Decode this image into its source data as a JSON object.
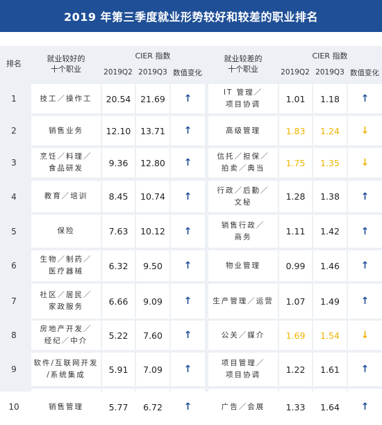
{
  "title": "2019 年第三季度就业形势较好和较差的职业排名",
  "header": {
    "rank": "排名",
    "good_group": "就业较好的\n十个职业",
    "bad_group": "就业较差的\n十个职业",
    "cier": "CIER 指数",
    "q2": "2019Q2",
    "q3": "2019Q3",
    "change": "数值变化"
  },
  "colors": {
    "title_bg": "#1f4f96",
    "up_arrow": "#1f4f96",
    "down_arrow": "#f0b400",
    "highlight_value": "#f0b400",
    "table_bg": "#edf1f6"
  },
  "rows": [
    {
      "rank": "1",
      "good_job": "技工／操作工",
      "good_q2": "20.54",
      "good_q3": "21.69",
      "good_change": "up",
      "bad_job": "IT 管理／\n项目协调",
      "bad_q2": "1.01",
      "bad_q3": "1.18",
      "bad_change": "up",
      "bad_highlight": false
    },
    {
      "rank": "2",
      "good_job": "销售业务",
      "good_q2": "12.10",
      "good_q3": "13.71",
      "good_change": "up",
      "bad_job": "高级管理",
      "bad_q2": "1.83",
      "bad_q3": "1.24",
      "bad_change": "down",
      "bad_highlight": true
    },
    {
      "rank": "3",
      "good_job": "烹饪／料理／\n食品研发",
      "good_q2": "9.36",
      "good_q3": "12.80",
      "good_change": "up",
      "bad_job": "信托／担保／\n拍卖／典当",
      "bad_q2": "1.75",
      "bad_q3": "1.35",
      "bad_change": "down",
      "bad_highlight": true
    },
    {
      "rank": "4",
      "good_job": "教育／培训",
      "good_q2": "8.45",
      "good_q3": "10.74",
      "good_change": "up",
      "bad_job": "行政／后勤／\n文秘",
      "bad_q2": "1.28",
      "bad_q3": "1.38",
      "bad_change": "up",
      "bad_highlight": false
    },
    {
      "rank": "5",
      "good_job": "保险",
      "good_q2": "7.63",
      "good_q3": "10.12",
      "good_change": "up",
      "bad_job": "销售行政／\n商务",
      "bad_q2": "1.11",
      "bad_q3": "1.42",
      "bad_change": "up",
      "bad_highlight": false
    },
    {
      "rank": "6",
      "good_job": "生物／制药／\n医疗器械",
      "good_q2": "6.32",
      "good_q3": "9.50",
      "good_change": "up",
      "bad_job": "物业管理",
      "bad_q2": "0.99",
      "bad_q3": "1.46",
      "bad_change": "up",
      "bad_highlight": false
    },
    {
      "rank": "7",
      "good_job": "社区／居民／\n家政服务",
      "good_q2": "6.66",
      "good_q3": "9.09",
      "good_change": "up",
      "bad_job": "生产管理／运营",
      "bad_q2": "1.07",
      "bad_q3": "1.49",
      "bad_change": "up",
      "bad_highlight": false
    },
    {
      "rank": "8",
      "good_job": "房地产开发／\n经纪／中介",
      "good_q2": "5.22",
      "good_q3": "7.60",
      "good_change": "up",
      "bad_job": "公关／媒介",
      "bad_q2": "1.69",
      "bad_q3": "1.54",
      "bad_change": "down",
      "bad_highlight": true
    },
    {
      "rank": "9",
      "good_job": "软件/互联网开发\n/系统集成",
      "good_q2": "5.91",
      "good_q3": "7.09",
      "good_change": "up",
      "bad_job": "项目管理／\n项目协调",
      "bad_q2": "1.22",
      "bad_q3": "1.61",
      "bad_change": "up",
      "bad_highlight": false
    },
    {
      "rank": "10",
      "good_job": "销售管理",
      "good_q2": "5.77",
      "good_q3": "6.72",
      "good_change": "up",
      "bad_job": "广告／会展",
      "bad_q2": "1.33",
      "bad_q3": "1.64",
      "bad_change": "up",
      "bad_highlight": false
    }
  ]
}
